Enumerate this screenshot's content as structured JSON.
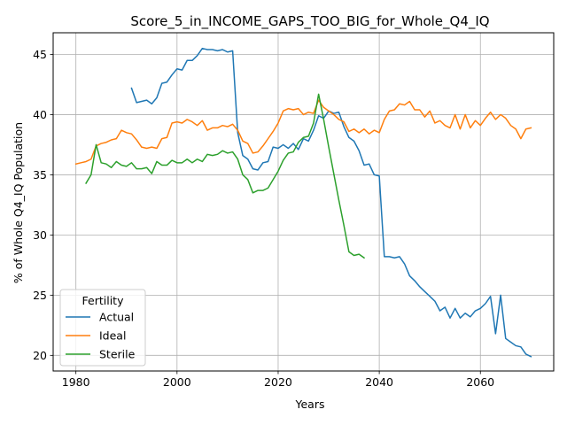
{
  "chart_data": {
    "type": "line",
    "title": "Score_5_in_INCOME_GAPS_TOO_BIG_for_Whole_Q4_IQ",
    "xlabel": "Years",
    "ylabel": "% of Whole Q4_IQ Population",
    "xlim": [
      1975.5,
      2074.5
    ],
    "ylim": [
      18.7,
      46.8
    ],
    "xticks": [
      1980,
      2000,
      2020,
      2040,
      2060
    ],
    "yticks": [
      20,
      25,
      30,
      35,
      40,
      45
    ],
    "grid": true,
    "legend": {
      "title": "Fertility",
      "placement": "lower-left"
    },
    "series": [
      {
        "name": "Actual",
        "color": "#1f77b4",
        "x": [
          1991,
          1992,
          1993,
          1994,
          1995,
          1996,
          1997,
          1998,
          1999,
          2000,
          2001,
          2002,
          2003,
          2004,
          2005,
          2006,
          2007,
          2008,
          2009,
          2010,
          2011,
          2012,
          2013,
          2014,
          2015,
          2016,
          2017,
          2018,
          2019,
          2020,
          2021,
          2022,
          2023,
          2024,
          2025,
          2026,
          2027,
          2028,
          2029,
          2030,
          2031,
          2032,
          2033,
          2034,
          2035,
          2036,
          2037,
          2038,
          2039,
          2040,
          2041,
          2042,
          2043,
          2044,
          2045,
          2046,
          2047,
          2048,
          2049,
          2050,
          2051,
          2052,
          2053,
          2054,
          2055,
          2056,
          2057,
          2058,
          2059,
          2060,
          2061,
          2062,
          2063,
          2064,
          2065,
          2066,
          2067,
          2068,
          2069,
          2070
        ],
        "y": [
          42.2,
          41.0,
          41.1,
          41.2,
          40.9,
          41.4,
          42.6,
          42.7,
          43.3,
          43.8,
          43.7,
          44.5,
          44.5,
          44.9,
          45.5,
          45.4,
          45.4,
          45.3,
          45.4,
          45.2,
          45.3,
          38.5,
          36.6,
          36.3,
          35.5,
          35.4,
          36.0,
          36.1,
          37.3,
          37.2,
          37.5,
          37.2,
          37.6,
          37.1,
          38.0,
          37.8,
          38.7,
          39.9,
          39.7,
          40.3,
          40.1,
          40.2,
          39.0,
          38.1,
          37.8,
          37.0,
          35.8,
          35.9,
          35.0,
          34.9,
          28.2,
          28.2,
          28.1,
          28.2,
          27.6,
          26.6,
          26.2,
          25.7,
          25.3,
          24.9,
          24.5,
          23.7,
          24.0,
          23.1,
          23.9,
          23.1,
          23.5,
          23.2,
          23.7,
          23.9,
          24.3,
          24.9,
          21.8,
          25.0,
          21.4,
          21.1,
          20.8,
          20.7,
          20.1,
          19.9
        ]
      },
      {
        "name": "Ideal",
        "color": "#ff7f0e",
        "x": [
          1980,
          1981,
          1982,
          1983,
          1984,
          1985,
          1986,
          1987,
          1988,
          1989,
          1990,
          1991,
          1992,
          1993,
          1994,
          1995,
          1996,
          1997,
          1998,
          1999,
          2000,
          2001,
          2002,
          2003,
          2004,
          2005,
          2006,
          2007,
          2008,
          2009,
          2010,
          2011,
          2012,
          2013,
          2014,
          2015,
          2016,
          2017,
          2018,
          2019,
          2020,
          2021,
          2022,
          2023,
          2024,
          2025,
          2026,
          2027,
          2028,
          2029,
          2030,
          2031,
          2032,
          2033,
          2034,
          2035,
          2036,
          2037,
          2038,
          2039,
          2040,
          2041,
          2042,
          2043,
          2044,
          2045,
          2046,
          2047,
          2048,
          2049,
          2050,
          2051,
          2052,
          2053,
          2054,
          2055,
          2056,
          2057,
          2058,
          2059,
          2060,
          2061,
          2062,
          2063,
          2064,
          2065,
          2066,
          2067,
          2068,
          2069,
          2070
        ],
        "y": [
          35.9,
          36.0,
          36.1,
          36.3,
          37.4,
          37.6,
          37.7,
          37.9,
          38.0,
          38.7,
          38.5,
          38.4,
          37.9,
          37.3,
          37.2,
          37.3,
          37.2,
          38.0,
          38.1,
          39.3,
          39.4,
          39.3,
          39.6,
          39.4,
          39.1,
          39.5,
          38.7,
          38.9,
          38.9,
          39.1,
          39.0,
          39.2,
          38.7,
          37.8,
          37.6,
          36.8,
          36.9,
          37.4,
          38.0,
          38.6,
          39.3,
          40.3,
          40.5,
          40.4,
          40.5,
          40.0,
          40.2,
          40.1,
          41.2,
          40.6,
          40.3,
          40.0,
          39.6,
          39.4,
          38.6,
          38.8,
          38.5,
          38.8,
          38.4,
          38.7,
          38.5,
          39.6,
          40.3,
          40.4,
          40.9,
          40.8,
          41.1,
          40.4,
          40.4,
          39.8,
          40.3,
          39.3,
          39.5,
          39.1,
          38.9,
          40.0,
          38.8,
          40.0,
          38.9,
          39.5,
          39.1,
          39.7,
          40.2,
          39.6,
          40.0,
          39.7,
          39.1,
          38.8,
          38.0,
          38.8,
          38.9
        ]
      },
      {
        "name": "Sterile",
        "color": "#2ca02c",
        "x": [
          1982,
          1983,
          1984,
          1985,
          1986,
          1987,
          1988,
          1989,
          1990,
          1991,
          1992,
          1993,
          1994,
          1995,
          1996,
          1997,
          1998,
          1999,
          2000,
          2001,
          2002,
          2003,
          2004,
          2005,
          2006,
          2007,
          2008,
          2009,
          2010,
          2011,
          2012,
          2013,
          2014,
          2015,
          2016,
          2017,
          2018,
          2019,
          2020,
          2021,
          2022,
          2023,
          2024,
          2025,
          2026,
          2027,
          2028,
          2029,
          2030,
          2031,
          2032,
          2033,
          2034,
          2035,
          2036,
          2037
        ],
        "y": [
          34.3,
          35.0,
          37.5,
          36.0,
          35.9,
          35.6,
          36.1,
          35.8,
          35.7,
          36.0,
          35.5,
          35.5,
          35.6,
          35.1,
          36.1,
          35.8,
          35.8,
          36.2,
          36.0,
          36.0,
          36.3,
          36.0,
          36.3,
          36.1,
          36.7,
          36.6,
          36.7,
          37.0,
          36.8,
          36.9,
          36.3,
          35.0,
          34.6,
          33.5,
          33.7,
          33.7,
          33.9,
          34.6,
          35.3,
          36.2,
          36.8,
          36.9,
          37.7,
          38.1,
          38.2,
          39.3,
          41.7,
          39.6,
          37.3,
          35.1,
          32.9,
          30.8,
          28.6,
          28.3,
          28.4,
          28.1
        ]
      }
    ]
  }
}
